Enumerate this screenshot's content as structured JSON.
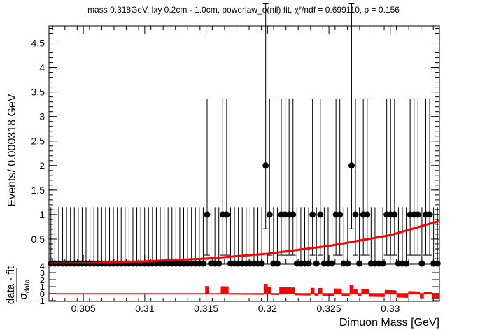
{
  "chart_data": {
    "type": "scatter",
    "title": "mass 0.318GeV, lxy 0.2cm - 1.0cm, powerlaw_o(nil) fit, χ²/ndf = 0.699110, p = 0.156",
    "xlabel": "Dimuon Mass [GeV]",
    "ylabel": "Events/ 0.000318 GeV",
    "pull_ylabel_num": "data - fit",
    "pull_ylabel_den_sigma": "σ",
    "pull_ylabel_den_sub": "data",
    "xlim": [
      0.3022,
      0.334
    ],
    "ylim": [
      0,
      4.85
    ],
    "pull_ylim": [
      -1.1,
      4.2
    ],
    "x_ticks": [
      0.305,
      0.31,
      0.315,
      0.32,
      0.325,
      0.33
    ],
    "x_tick_labels": [
      "0.305",
      "0.31",
      "0.315",
      "0.32",
      "0.325",
      "0.33"
    ],
    "y_ticks": [
      0.5,
      1,
      1.5,
      2,
      2.5,
      3,
      3.5,
      4,
      4.5
    ],
    "y_tick_labels": [
      "0.5",
      "1",
      "1.5",
      "2",
      "2.5",
      "3",
      "3.5",
      "4",
      "4.5"
    ],
    "pull_y_ticks": [
      -1,
      0,
      1,
      2,
      3,
      4
    ],
    "pull_y_tick_labels": [
      "−1",
      "0",
      "1",
      "2",
      "3",
      "4"
    ],
    "bin_width": 0.000318,
    "counts": [
      0,
      0,
      0,
      0,
      0,
      0,
      0,
      0,
      0,
      0,
      0,
      0,
      0,
      0,
      0,
      0,
      0,
      0,
      0,
      0,
      0,
      0,
      0,
      0,
      0,
      0,
      0,
      0,
      0,
      0,
      0,
      0,
      0,
      0,
      0,
      0,
      0,
      0,
      0,
      0,
      1,
      0,
      0,
      0,
      1,
      1,
      0,
      0,
      0,
      0,
      0,
      0,
      0,
      0,
      0,
      2,
      1,
      0,
      0,
      1,
      1,
      1,
      1,
      0,
      0,
      0,
      0,
      1,
      0,
      1,
      0,
      0,
      0,
      1,
      1,
      0,
      0,
      2,
      1,
      0,
      1,
      1,
      0,
      0,
      0,
      0,
      1,
      1,
      1,
      0,
      0,
      0,
      1,
      1,
      1,
      0,
      1,
      1,
      0,
      0
    ],
    "error_up": {
      "0": 1.15,
      "1": 2.36,
      "2": 3.3
    },
    "error_down": {
      "0": 0,
      "1": 0.83,
      "2": 1.29
    },
    "fit_curve": {
      "name": "powerlaw fit",
      "x": [
        0.3022,
        0.305,
        0.31,
        0.315,
        0.32,
        0.325,
        0.33,
        0.334
      ],
      "y": [
        0.0,
        0.006,
        0.045,
        0.1,
        0.2,
        0.36,
        0.58,
        0.87
      ]
    },
    "colors": {
      "data": "#000000",
      "fit": "#ff0000",
      "pull": "#ff0000",
      "frame": "#000000"
    }
  }
}
